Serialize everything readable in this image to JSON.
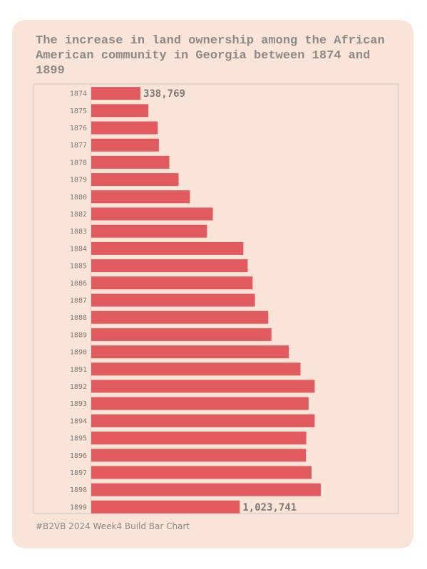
{
  "chart_data": {
    "type": "bar",
    "orientation": "horizontal",
    "title": "The increase in land ownership among the African American community in Georgia between 1874 and 1899",
    "xlabel": "",
    "ylabel": "",
    "categories": [
      "1874",
      "1875",
      "1876",
      "1877",
      "1878",
      "1879",
      "1880",
      "1882",
      "1883",
      "1884",
      "1885",
      "1886",
      "1887",
      "1888",
      "1889",
      "1890",
      "1891",
      "1892",
      "1893",
      "1894",
      "1895",
      "1896",
      "1897",
      "1898",
      "1899"
    ],
    "values": [
      338769,
      394000,
      458000,
      466000,
      538000,
      602000,
      680000,
      838000,
      798000,
      1048000,
      1078000,
      1112000,
      1128000,
      1220000,
      1242000,
      1362000,
      1442000,
      1540000,
      1498000,
      1540000,
      1482000,
      1480000,
      1518000,
      1582000,
      1023741
    ],
    "data_labels": [
      {
        "category": "1874",
        "text": "338,769"
      },
      {
        "category": "1899",
        "text": "1,023,741"
      }
    ],
    "bar_color": "#e05a5e",
    "grid": false
  },
  "footer": {
    "text": "#B2VB 2024 Week4 Build Bar Chart"
  },
  "colors": {
    "card_background": "#fae3d7",
    "text": "#8a8a8a",
    "frame": "#c8c8c8"
  }
}
